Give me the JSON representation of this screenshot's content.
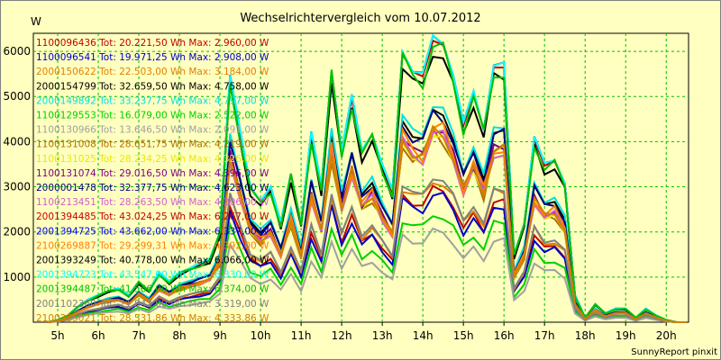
{
  "chart_data": {
    "type": "line",
    "title": "Wechselrichtervergleich vom 10.07.2012",
    "ylabel": "W",
    "footer": "SunnyReport pinxit",
    "x_labels": [
      "5h",
      "6h",
      "7h",
      "8h",
      "9h",
      "10h",
      "11h",
      "12h",
      "13h",
      "14h",
      "15h",
      "16h",
      "17h",
      "18h",
      "19h",
      "20h"
    ],
    "xlim": [
      4.4,
      20.55
    ],
    "ylim": [
      0,
      6400
    ],
    "yticks": [
      1000,
      2000,
      3000,
      4000,
      5000,
      6000
    ],
    "grid": true,
    "legend_position": "top-left",
    "x": [
      4.75,
      5,
      5.25,
      5.5,
      5.75,
      6,
      6.25,
      6.5,
      6.75,
      7,
      7.25,
      7.5,
      7.75,
      8,
      8.25,
      8.5,
      8.75,
      9,
      9.25,
      9.5,
      9.75,
      10,
      10.25,
      10.5,
      10.75,
      11,
      11.25,
      11.5,
      11.75,
      12,
      12.25,
      12.5,
      12.75,
      13,
      13.25,
      13.5,
      13.75,
      14,
      14.25,
      14.5,
      14.75,
      15,
      15.25,
      15.5,
      15.75,
      16,
      16.25,
      16.5,
      16.75,
      17,
      17.25,
      17.5,
      17.75,
      18,
      18.25,
      18.5,
      18.75,
      19,
      19.25,
      19.5,
      19.75,
      20,
      20.25,
      20.5
    ],
    "series": [
      {
        "name": "1100096436 Tot: 20.221,50 Wh Max: 2.960,00 W",
        "color": "#c00000",
        "scale": 0.47,
        "noise": 0.02
      },
      {
        "name": "1100096541 Tot: 19.971,25 Wh Max: 2.908,00 W",
        "color": "#0000c8",
        "scale": 0.45,
        "noise": -0.03
      },
      {
        "name": "2000150622 Tot: 22.503,00 Wh Max: 3.184,00 W",
        "color": "#e08000",
        "scale": 0.5,
        "noise": 0.04
      },
      {
        "name": "2000154799 Tot: 32.659,50 Wh Max: 4.758,00 W",
        "color": "#000000",
        "scale": 0.74,
        "noise": -0.01
      },
      {
        "name": "2000149892 Tot: 33.237,75 Wh Max: 4.797,00 W",
        "color": "#00e0e0",
        "scale": 0.76,
        "noise": 0.01
      },
      {
        "name": "1100129553 Tot: 16.079,00 Wh Max: 2.522,00 W",
        "color": "#00d000",
        "scale": 0.38,
        "noise": -0.04
      },
      {
        "name": "1100130966 Tot: 13.646,50 Wh Max: 2.091,00 W",
        "color": "#a0a0a0",
        "scale": 0.32,
        "noise": 0.03
      },
      {
        "name": "1100131008 Tot: 28.651,75 Wh Max: 4.219,00 W",
        "color": "#b07000",
        "scale": 0.66,
        "noise": 0.05
      },
      {
        "name": "1100131025 Tot: 28.234,25 Wh Max: 4.326,00 W",
        "color": "#e8e800",
        "scale": 0.65,
        "noise": -0.02
      },
      {
        "name": "1100131074 Tot: 29.016,50 Wh Max: 4.396,00 W",
        "color": "#800080",
        "scale": 0.68,
        "noise": 0.02
      },
      {
        "name": "2000001478 Tot: 32.377,75 Wh Max: 4.623,00 W",
        "color": "#000080",
        "scale": 0.73,
        "noise": -0.03
      },
      {
        "name": "1100213451 Tot: 28.263,50 Wh Max: 4.306,00 W",
        "color": "#d060d0",
        "scale": 0.66,
        "noise": 0.04
      },
      {
        "name": "2001394485 Tot: 43.024,25 Wh Max: 6.267,00 W",
        "color": "#c00000",
        "scale": 0.99,
        "noise": 0.0
      },
      {
        "name": "2001394725 Tot: 43.662,00 Wh Max: 6.337,00 W",
        "color": "#0000e0",
        "scale": 1.0,
        "noise": 0.01
      },
      {
        "name": "2100269887 Tot: 29.299,31 Wh Max: 4.392,00 W",
        "color": "#ff8000",
        "scale": 0.68,
        "noise": -0.05
      },
      {
        "name": "2001393249 Tot: 40.778,00 Wh Max: 6.066,00 W",
        "color": "#000000",
        "scale": 0.95,
        "noise": 0.02
      },
      {
        "name": "2001394723 Tot: 43.547,00 Wh Max: 6.330,00 W",
        "color": "#00ffff",
        "scale": 1.0,
        "noise": -0.01
      },
      {
        "name": "2001394487 Tot: 41.566,00 Wh Max: 6.374,00 W",
        "color": "#00c000",
        "scale": 0.97,
        "noise": 0.03
      },
      {
        "name": "2001102360 Tot: 21.842,00 Wh Max: 3.319,00 W",
        "color": "#808080",
        "scale": 0.51,
        "noise": -0.02
      },
      {
        "name": "2100285021 Tot: 28.531,86 Wh Max: 4.333,86 W",
        "color": "#d08000",
        "scale": 0.67,
        "noise": 0.03
      }
    ],
    "reference_profile": [
      0,
      50,
      150,
      350,
      500,
      600,
      700,
      750,
      600,
      900,
      700,
      1100,
      900,
      1100,
      1200,
      1300,
      1400,
      2000,
      5500,
      4200,
      3000,
      2700,
      3000,
      2200,
      3300,
      2200,
      4200,
      3000,
      5600,
      3800,
      5000,
      3800,
      4200,
      3500,
      2900,
      6000,
      5600,
      5500,
      6300,
      6200,
      5500,
      4400,
      5100,
      4300,
      5700,
      5700,
      1500,
      2200,
      4100,
      3500,
      3600,
      3100,
      600,
      100,
      400,
      200,
      300,
      300,
      100,
      300,
      150,
      50,
      0,
      0
    ]
  }
}
